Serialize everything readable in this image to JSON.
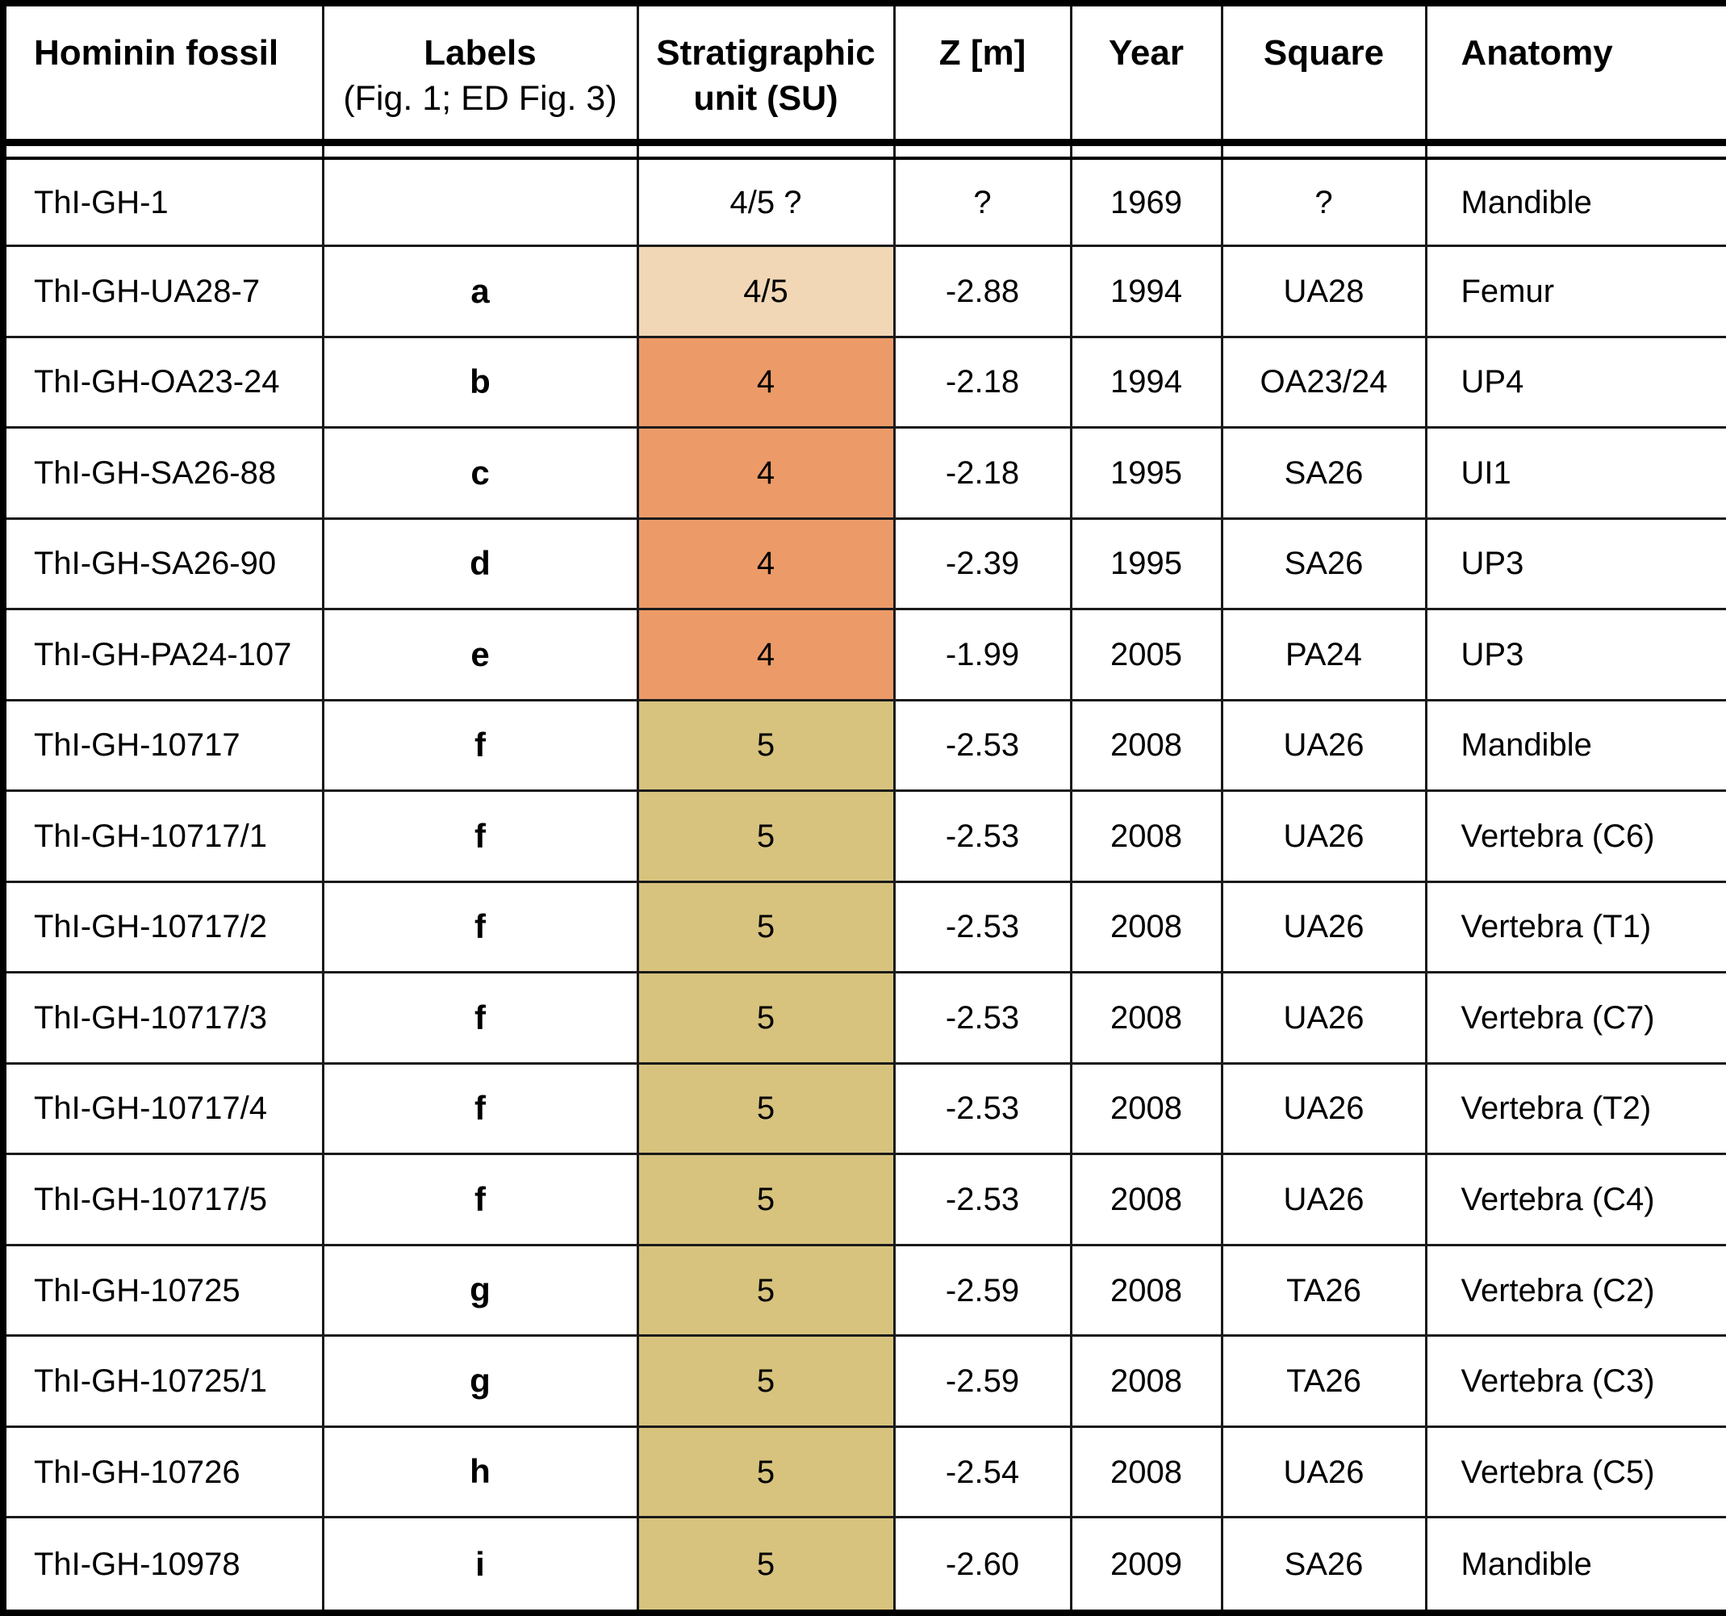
{
  "title": "Hominin fossil stratigraphic table",
  "colors": {
    "su_4_5": "#F1D7B5",
    "su_4": "#EC9B68",
    "su_5": "#D7C37D",
    "grid_line": "#1a1a1a",
    "outer_border": "#000000"
  },
  "header": {
    "fossil": "Hominin fossil",
    "labels_line1": "Labels",
    "labels_line2": "(Fig. 1; ED Fig. 3)",
    "su_line1": "Stratigraphic",
    "su_line2": "unit (SU)",
    "z": "Z [m]",
    "year": "Year",
    "square": "Square",
    "anatomy": "Anatomy"
  },
  "table": {
    "rows": [
      {
        "fossil": "ThI-GH-1",
        "label": "",
        "su": "4/5 ?",
        "su_class": "none",
        "z": "?",
        "year": "1969",
        "square": "?",
        "anatomy": "Mandible"
      },
      {
        "fossil": "ThI-GH-UA28-7",
        "label": "a",
        "su": "4/5",
        "su_class": "su_4_5",
        "z": "-2.88",
        "year": "1994",
        "square": "UA28",
        "anatomy": "Femur"
      },
      {
        "fossil": "ThI-GH-OA23-24",
        "label": "b",
        "su": "4",
        "su_class": "su_4",
        "z": "-2.18",
        "year": "1994",
        "square": "OA23/24",
        "anatomy": "UP4"
      },
      {
        "fossil": "ThI-GH-SA26-88",
        "label": "c",
        "su": "4",
        "su_class": "su_4",
        "z": "-2.18",
        "year": "1995",
        "square": "SA26",
        "anatomy": "UI1"
      },
      {
        "fossil": "ThI-GH-SA26-90",
        "label": "d",
        "su": "4",
        "su_class": "su_4",
        "z": "-2.39",
        "year": "1995",
        "square": "SA26",
        "anatomy": "UP3"
      },
      {
        "fossil": "ThI-GH-PA24-107",
        "label": "e",
        "su": "4",
        "su_class": "su_4",
        "z": "-1.99",
        "year": "2005",
        "square": "PA24",
        "anatomy": "UP3"
      },
      {
        "fossil": "ThI-GH-10717",
        "label": "f",
        "su": "5",
        "su_class": "su_5",
        "z": "-2.53",
        "year": "2008",
        "square": "UA26",
        "anatomy": "Mandible"
      },
      {
        "fossil": "ThI-GH-10717/1",
        "label": "f",
        "su": "5",
        "su_class": "su_5",
        "z": "-2.53",
        "year": "2008",
        "square": "UA26",
        "anatomy": "Vertebra (C6)"
      },
      {
        "fossil": "ThI-GH-10717/2",
        "label": "f",
        "su": "5",
        "su_class": "su_5",
        "z": "-2.53",
        "year": "2008",
        "square": "UA26",
        "anatomy": "Vertebra (T1)"
      },
      {
        "fossil": "ThI-GH-10717/3",
        "label": "f",
        "su": "5",
        "su_class": "su_5",
        "z": "-2.53",
        "year": "2008",
        "square": "UA26",
        "anatomy": "Vertebra (C7)"
      },
      {
        "fossil": "ThI-GH-10717/4",
        "label": "f",
        "su": "5",
        "su_class": "su_5",
        "z": "-2.53",
        "year": "2008",
        "square": "UA26",
        "anatomy": "Vertebra (T2)"
      },
      {
        "fossil": "ThI-GH-10717/5",
        "label": "f",
        "su": "5",
        "su_class": "su_5",
        "z": "-2.53",
        "year": "2008",
        "square": "UA26",
        "anatomy": "Vertebra (C4)"
      },
      {
        "fossil": "ThI-GH-10725",
        "label": "g",
        "su": "5",
        "su_class": "su_5",
        "z": "-2.59",
        "year": "2008",
        "square": "TA26",
        "anatomy": "Vertebra (C2)"
      },
      {
        "fossil": "ThI-GH-10725/1",
        "label": "g",
        "su": "5",
        "su_class": "su_5",
        "z": "-2.59",
        "year": "2008",
        "square": "TA26",
        "anatomy": "Vertebra (C3)"
      },
      {
        "fossil": "ThI-GH-10726",
        "label": "h",
        "su": "5",
        "su_class": "su_5",
        "z": "-2.54",
        "year": "2008",
        "square": "UA26",
        "anatomy": "Vertebra (C5)"
      },
      {
        "fossil": "ThI-GH-10978",
        "label": "i",
        "su": "5",
        "su_class": "su_5",
        "z": "-2.60",
        "year": "2009",
        "square": "SA26",
        "anatomy": "Mandible"
      }
    ]
  }
}
